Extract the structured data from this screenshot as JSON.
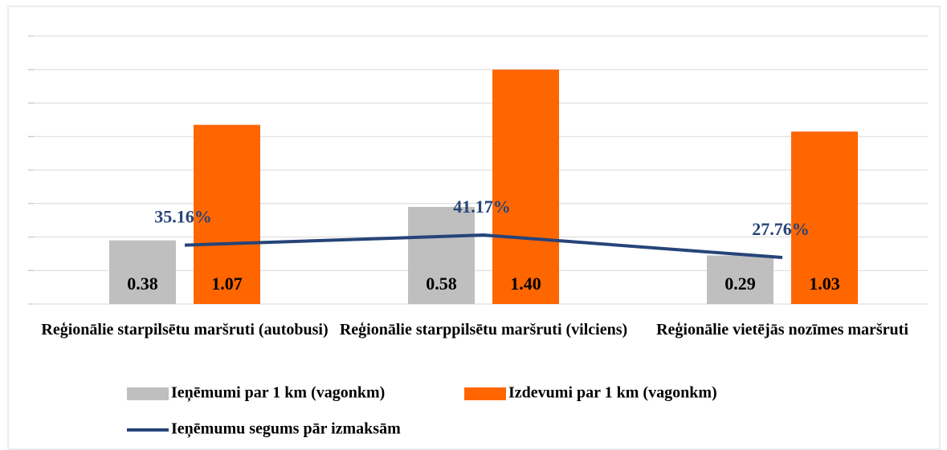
{
  "chart_data": {
    "type": "bar",
    "categories": [
      "Reģionālie starpilsētu maršruti (autobusi)",
      "Reģionālie starppilsētu maršruti (vilciens)",
      "Reģionālie vietējās nozīmes maršruti"
    ],
    "series": [
      {
        "name": "Ieņēmumi par 1 km (vagonkm)",
        "color": "#bfbfbf",
        "values": [
          0.38,
          0.58,
          0.29
        ],
        "value_labels": [
          "0.38",
          "0.58",
          "0.29"
        ]
      },
      {
        "name": "Izdevumi par 1 km (vagonkm)",
        "color": "#ff6600",
        "values": [
          1.07,
          1.4,
          1.03
        ],
        "value_labels": [
          "1.07",
          "1.40",
          "1.03"
        ]
      },
      {
        "name": "Ieņēmumu segums pār izmaksām",
        "type": "line",
        "axis": "y2",
        "color": "#264478",
        "values": [
          35.16,
          41.17,
          27.76
        ],
        "value_labels": [
          "35.16%",
          "41.17%",
          "27.76%"
        ]
      }
    ],
    "ylim": [
      0,
      1.6
    ],
    "yticks": [
      0,
      0.2,
      0.4,
      0.6,
      0.8,
      1.0,
      1.2,
      1.4,
      1.6
    ],
    "y2lim": [
      0,
      160
    ],
    "grid": true
  }
}
